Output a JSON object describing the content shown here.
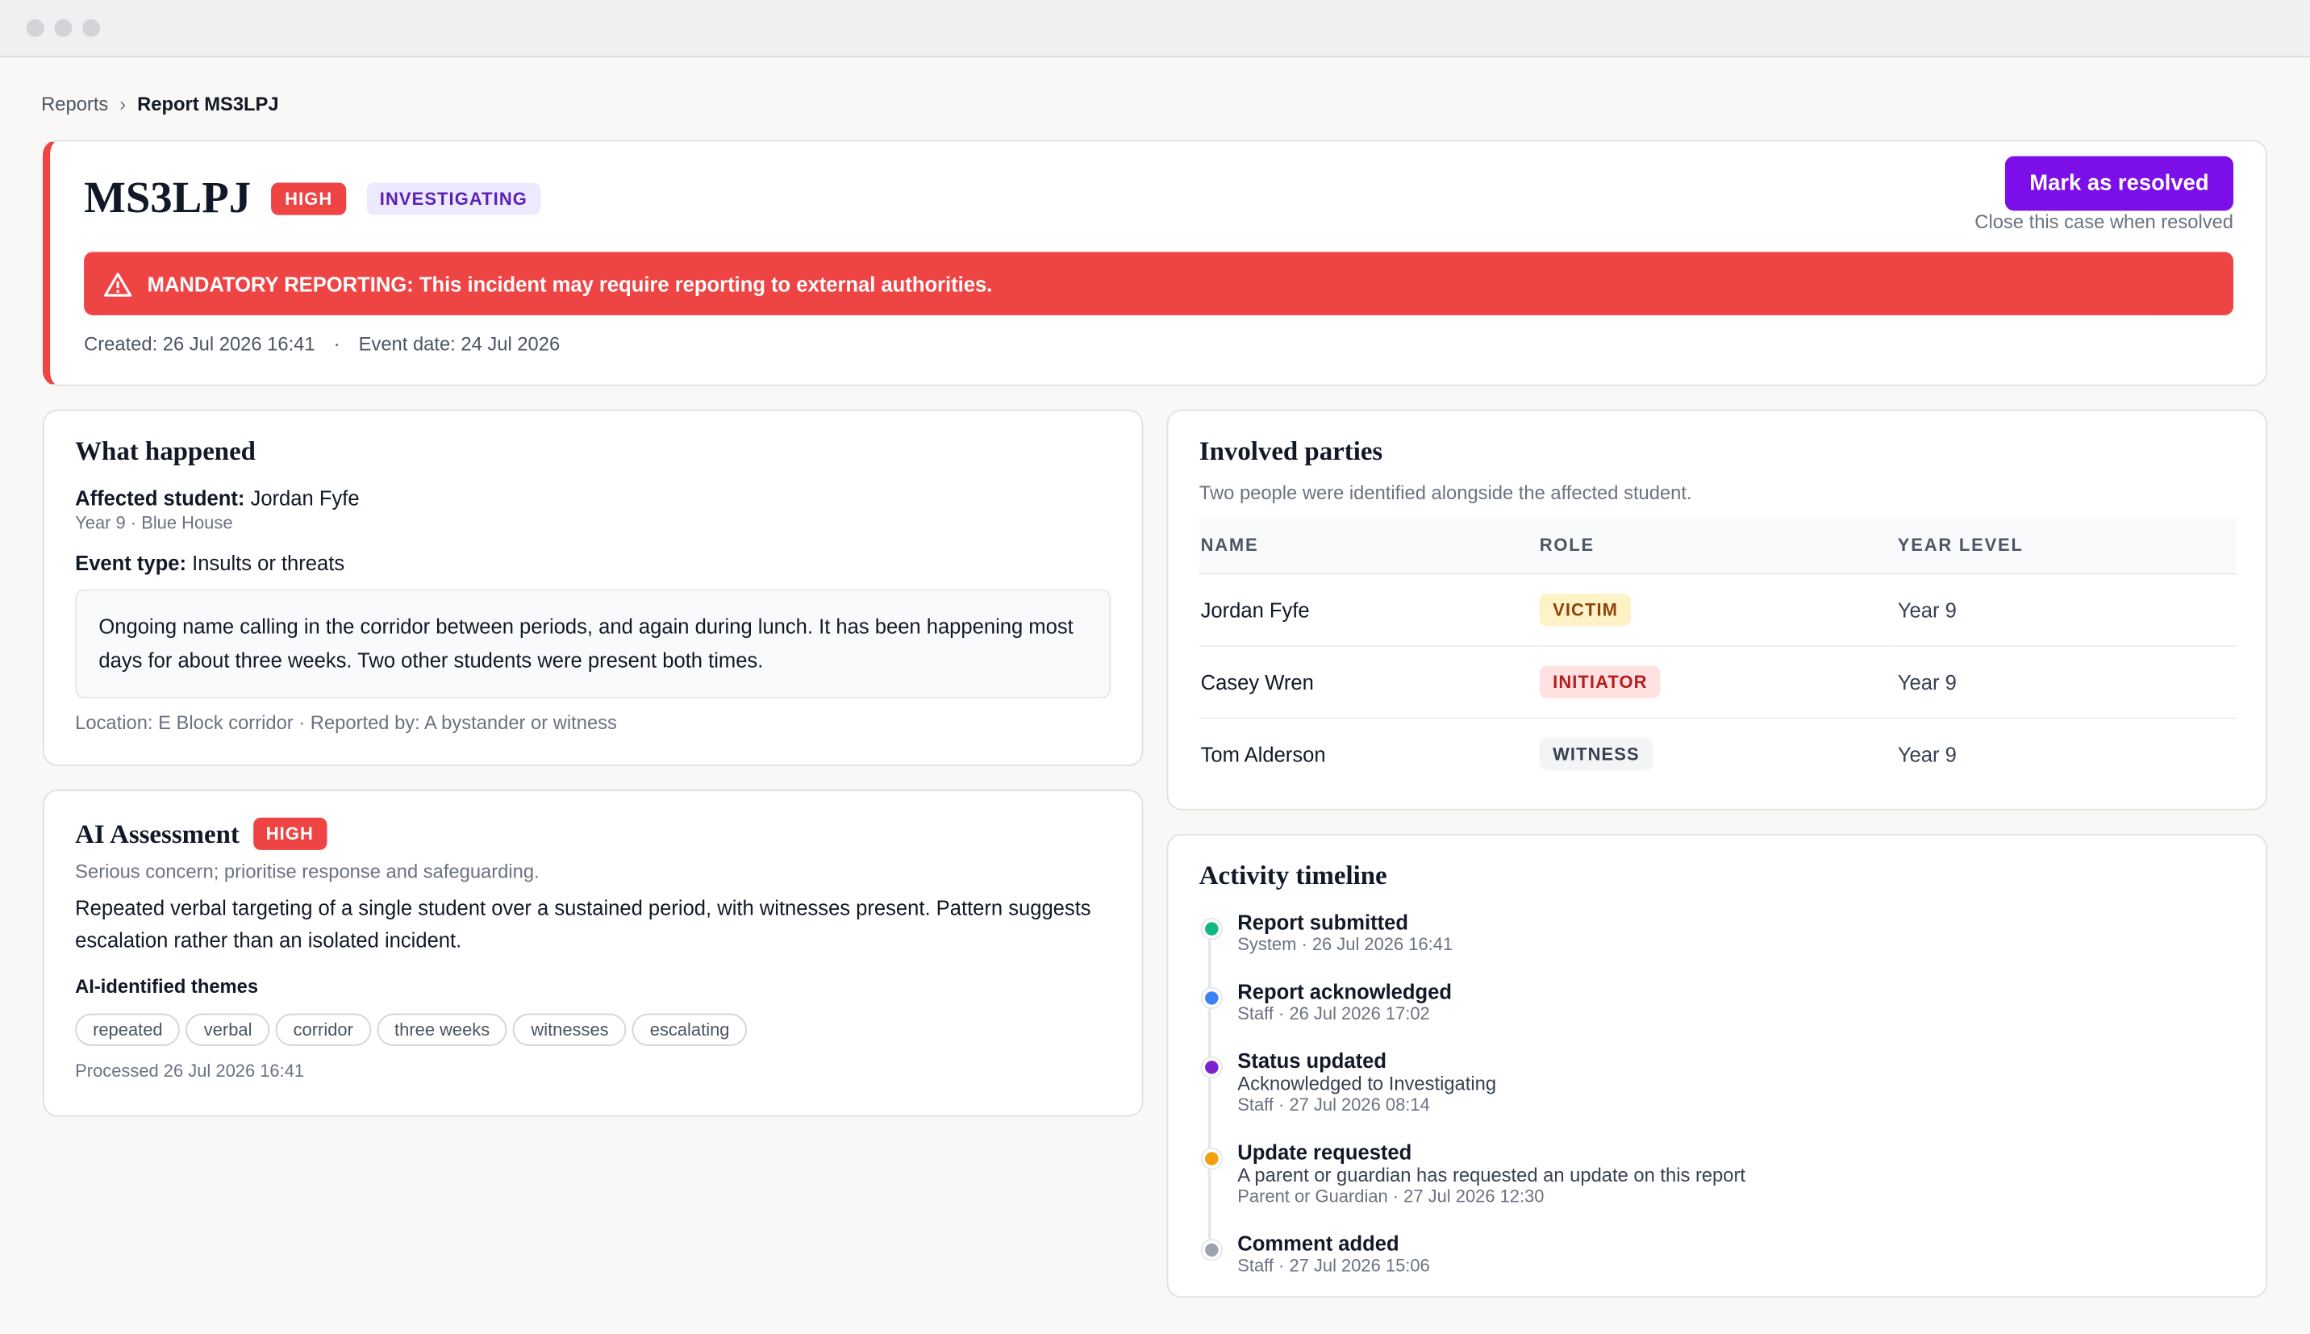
{
  "breadcrumb": {
    "parent": "Reports",
    "separator": "›",
    "current": "Report MS3LPJ"
  },
  "header": {
    "title": "MS3LPJ",
    "severity": "HIGH",
    "status": "INVESTIGATING",
    "action": "Mark as resolved",
    "action_hint": "Close this case when resolved",
    "alert": "MANDATORY REPORTING: This incident may require reporting to external authorities.",
    "created": "Created: 26 Jul 2026 16:41",
    "separator": "·",
    "event_date": "Event date: 24 Jul 2026"
  },
  "what_happened": {
    "title": "What happened",
    "student_label": "Affected student:",
    "student": "Jordan Fyfe",
    "student_meta": "Year 9 · Blue House",
    "event_label": "Event type:",
    "event_type": "Insults or threats",
    "description": "Ongoing name calling in the corridor between periods, and again during lunch. It has been happening most days for about three weeks. Two other students were present both times.",
    "footer": "Location: E Block corridor · Reported by: A bystander or witness"
  },
  "ai_assessment": {
    "title": "AI Assessment",
    "severity": "HIGH",
    "summary": "Serious concern; prioritise response and safeguarding.",
    "text": "Repeated verbal targeting of a single student over a sustained period, with witnesses present. Pattern suggests escalation rather than an isolated incident.",
    "themes_label": "AI-identified themes",
    "themes": [
      "repeated",
      "verbal",
      "corridor",
      "three weeks",
      "witnesses",
      "escalating"
    ],
    "processed": "Processed 26 Jul 2026 16:41"
  },
  "involved_parties": {
    "title": "Involved parties",
    "subtitle": "Two people were identified alongside the affected student.",
    "columns": [
      "NAME",
      "ROLE",
      "YEAR LEVEL"
    ],
    "rows": [
      [
        "Jordan Fyfe",
        "VICTIM",
        "Year 9"
      ],
      [
        "Casey Wren",
        "INITIATOR",
        "Year 9"
      ],
      [
        "Tom Alderson",
        "WITNESS",
        "Year 9"
      ]
    ]
  },
  "timeline": {
    "title": "Activity timeline",
    "events": [
      {
        "title": "Report submitted",
        "meta": "System · 26 Jul 2026 16:41",
        "color": "#10b981"
      },
      {
        "title": "Report acknowledged",
        "meta": "Staff · 26 Jul 2026 17:02",
        "color": "#3b82f6"
      },
      {
        "title": "Status updated",
        "detail": "Acknowledged to Investigating",
        "meta": "Staff · 27 Jul 2026 08:14",
        "color": "#7e22ce"
      },
      {
        "title": "Update requested",
        "detail": "A parent or guardian has requested an update on this report",
        "meta": "Parent or Guardian · 27 Jul 2026 12:30",
        "color": "#f59e0b"
      },
      {
        "title": "Comment added",
        "meta": "Staff · 27 Jul 2026 15:06",
        "color": "#9ca3af"
      }
    ]
  }
}
